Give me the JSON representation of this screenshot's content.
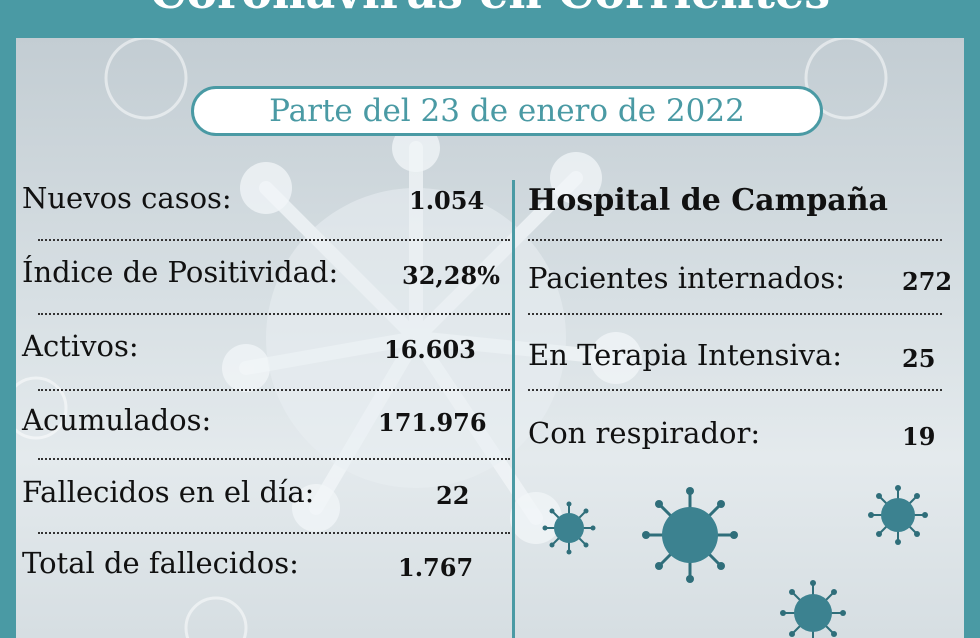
{
  "header": {
    "title": "Coronavirus en Corrientes"
  },
  "date_label": "Parte del 23 de enero de 2022",
  "left_stats": [
    {
      "label": "Nuevos casos:",
      "value": "1.054"
    },
    {
      "label": "Índice de Positividad:",
      "value": "32,28%"
    },
    {
      "label": "Activos:",
      "value": "16.603"
    },
    {
      "label": "Acumulados:",
      "value": "171.976"
    },
    {
      "label": "Fallecidos en el día:",
      "value": "22"
    },
    {
      "label": "Total de fallecidos:",
      "value": "1.767"
    }
  ],
  "hospital": {
    "title": "Hospital de Campaña",
    "stats": [
      {
        "label": "Pacientes internados:",
        "value": "272"
      },
      {
        "label": "En Terapia Intensiva:",
        "value": "25"
      },
      {
        "label": "Con respirador:",
        "value": "19"
      }
    ]
  },
  "colors": {
    "frame_teal": "#4a9aa4",
    "virus_dark": "#2f6e7a",
    "panel_light": "#dfe6ea"
  },
  "icons": [
    "virus-icon-large-background",
    "virus-icon-small"
  ]
}
